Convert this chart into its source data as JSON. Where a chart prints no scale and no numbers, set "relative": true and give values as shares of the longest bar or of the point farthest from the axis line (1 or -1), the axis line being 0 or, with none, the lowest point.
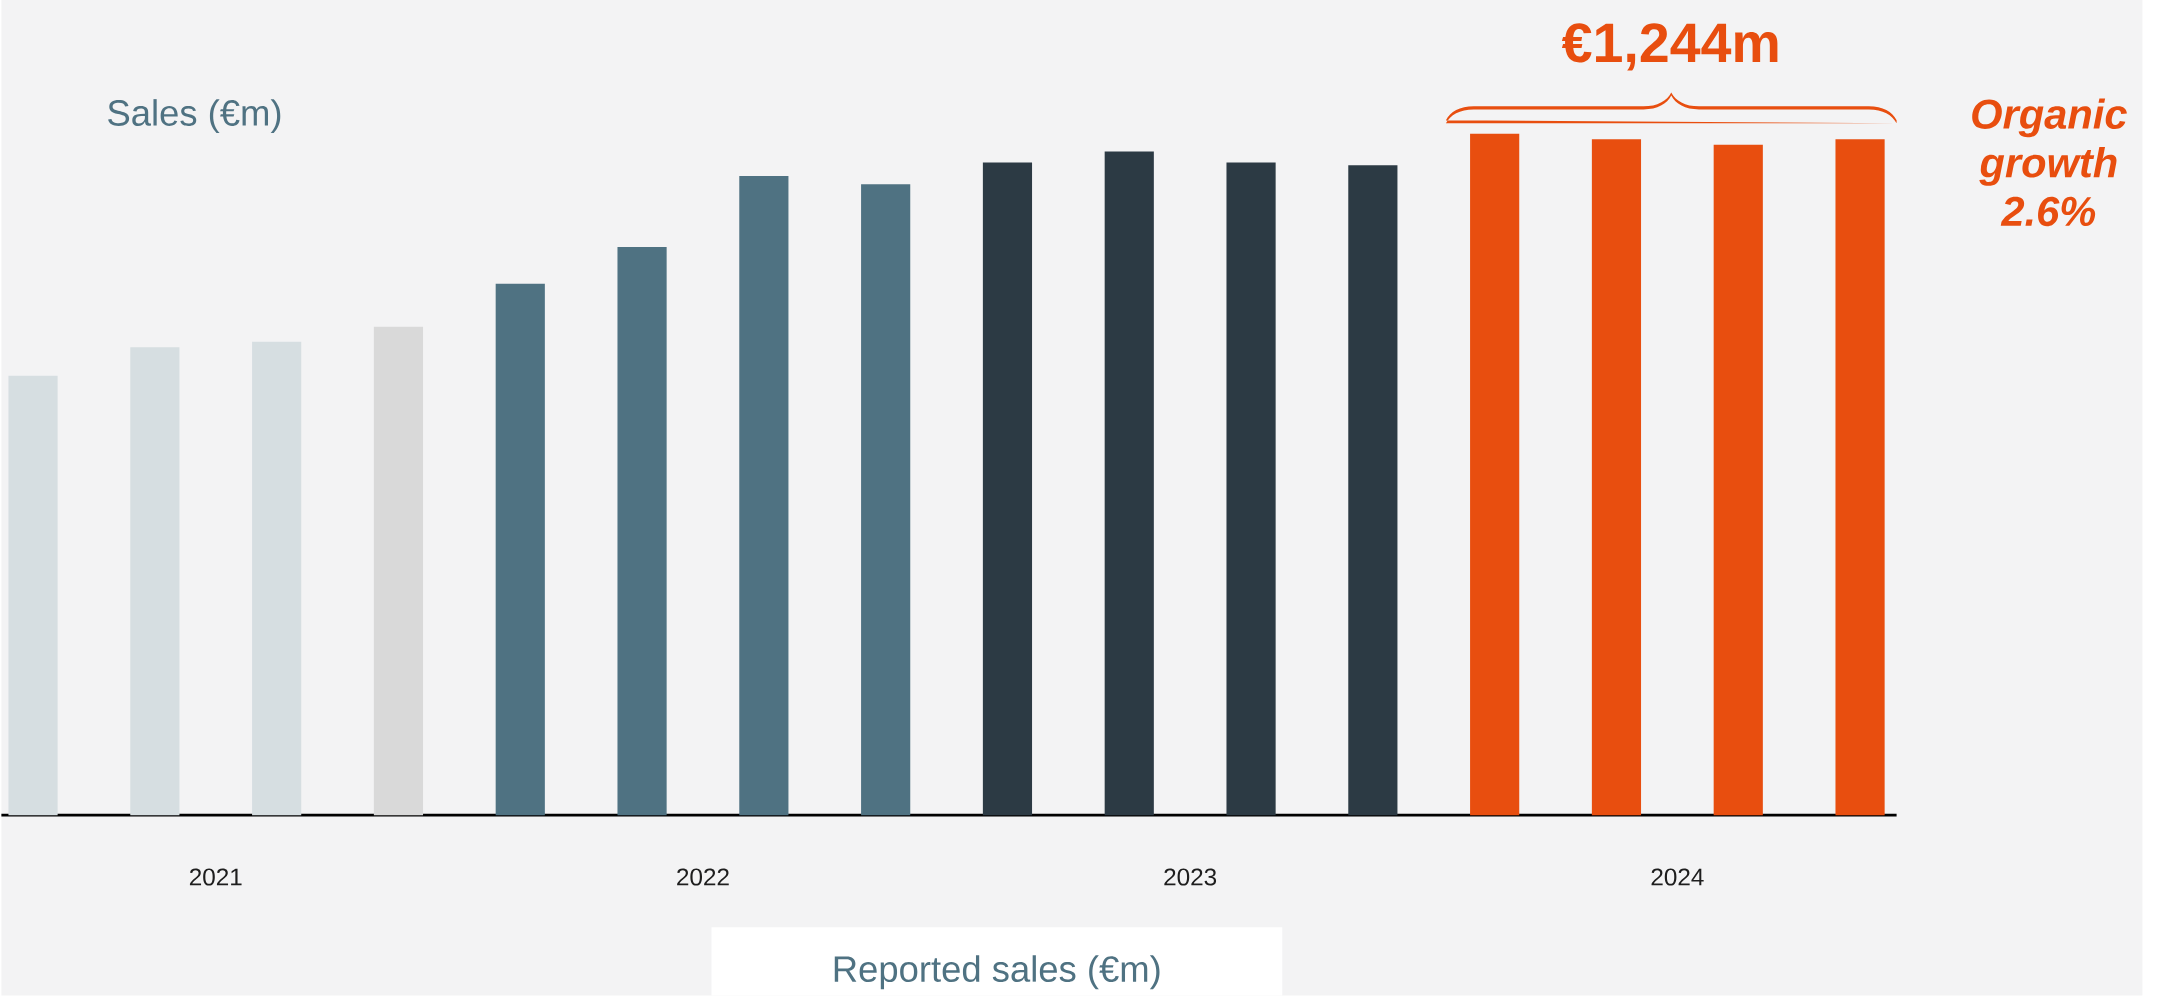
{
  "chart_data": {
    "type": "bar",
    "title": "Sales (€m)",
    "relative": true,
    "categories": [
      null,
      null,
      null,
      null,
      null,
      null,
      null,
      null,
      null,
      null,
      null,
      null,
      null,
      null,
      null,
      null
    ],
    "values": [
      0.645,
      0.687,
      0.695,
      0.717,
      0.78,
      0.834,
      0.938,
      0.926,
      0.958,
      0.974,
      0.958,
      0.954,
      1,
      0.992,
      0.984,
      0.992
    ],
    "colors": [
      "#d6dee1",
      "#d6dee1",
      "#d6dee1",
      "#d9d9d9",
      "#4f7282",
      "#4f7282",
      "#4f7282",
      "#4f7282",
      "#2c3a44",
      "#2c3a44",
      "#2c3a44",
      "#2c3a44",
      "#e84e0f",
      "#e84e0f",
      "#e84e0f",
      "#e84e0f"
    ],
    "annotations": [
      "2021",
      "2022",
      "2023",
      "2024",
      "€1,244m",
      "Organic growth 2.6%",
      "Reported sales (€m)"
    ]
  }
}
